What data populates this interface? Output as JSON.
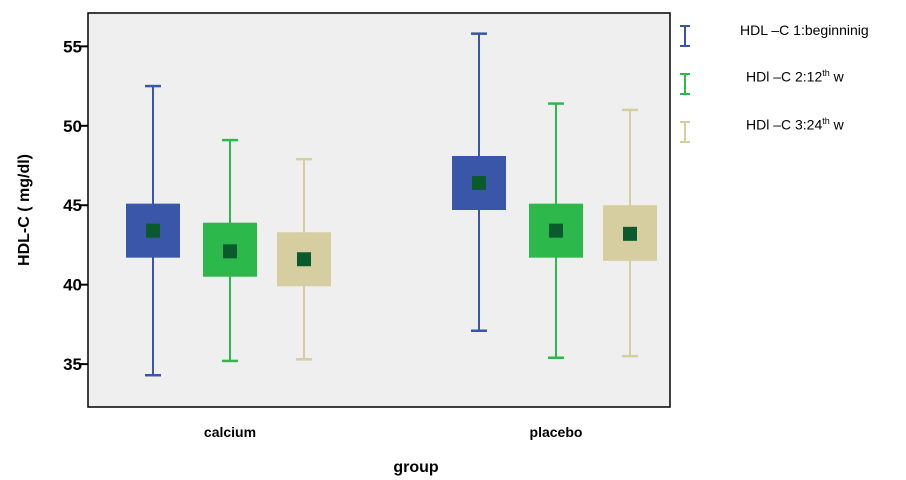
{
  "chart_data": {
    "type": "box",
    "xlabel": "group",
    "ylabel": "HDL-C ( mg/dl)",
    "ylim": [
      32.3,
      57.1
    ],
    "yticks": [
      35,
      40,
      45,
      50,
      55
    ],
    "ytick_labels": [
      "35",
      "40",
      "45",
      "50",
      "55"
    ],
    "categories": [
      "calcium",
      "placebo"
    ],
    "legend_position": "right",
    "series": [
      {
        "name": "HDL –C 1:beginninig",
        "color": "#3a56a8",
        "whisker_low": [
          34.3,
          37.1
        ],
        "box_low": [
          41.7,
          44.7
        ],
        "box_high": [
          45.1,
          48.1
        ],
        "mean": [
          43.4,
          46.4
        ]
      },
      {
        "name": "HDl –C 2:12th w",
        "color": "#2db84b",
        "whisker_low": [
          35.2,
          35.4
        ],
        "box_low": [
          40.5,
          41.7
        ],
        "box_high": [
          43.9,
          45.1
        ],
        "mean": [
          42.1,
          43.4
        ]
      },
      {
        "name": "HDl –C 3:24th w",
        "color": "#d6cea0",
        "whisker_low": [
          35.3,
          35.5
        ],
        "box_low": [
          39.9,
          41.5
        ],
        "box_high": [
          43.3,
          45.0
        ],
        "mean": [
          41.6,
          43.2
        ]
      }
    ],
    "whisker_high": [
      [
        52.5,
        55.8
      ],
      [
        49.1,
        51.4
      ],
      [
        47.9,
        51.0
      ]
    ],
    "mean_marker_color": "#0b5a2e",
    "plot_background": "#efefef"
  },
  "legend": [
    {
      "prefix": "HDL –C 1:beginninig",
      "sup": "",
      "suffix": ""
    },
    {
      "prefix": "HDl –C 2:12",
      "sup": "th",
      "suffix": " w"
    },
    {
      "prefix": "HDl –C 3:24",
      "sup": "th",
      "suffix": " w"
    }
  ]
}
